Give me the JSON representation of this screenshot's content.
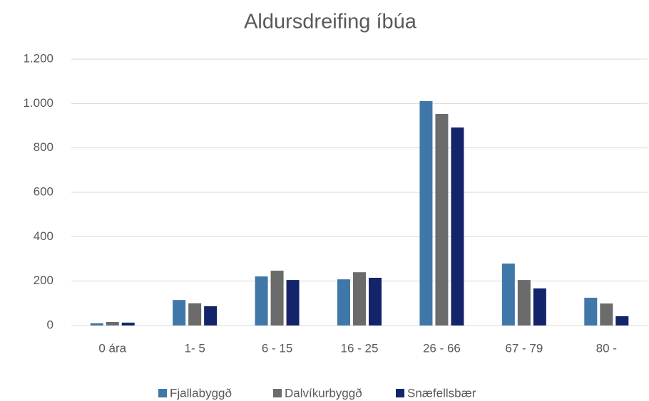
{
  "chart_data": {
    "type": "bar",
    "title": "Aldursdreifing íbúa",
    "categories": [
      "0 ára",
      "1- 5",
      "6 - 15",
      "16 - 25",
      "26 - 66",
      "67 - 79",
      "80 -"
    ],
    "series": [
      {
        "name": "Fjallabyggð",
        "color": "#3f77a8",
        "values": [
          10,
          115,
          221,
          208,
          1011,
          279,
          125
        ]
      },
      {
        "name": "Dalvíkurbyggð",
        "color": "#6b6b6b",
        "values": [
          16,
          100,
          247,
          240,
          953,
          205,
          99
        ]
      },
      {
        "name": "Snæfellsbær",
        "color": "#14246b",
        "values": [
          13,
          87,
          205,
          215,
          892,
          167,
          42
        ]
      }
    ],
    "ylim": [
      0,
      1200
    ],
    "yticks": [
      0,
      200,
      400,
      600,
      800,
      {
        "value": 1000,
        "label": "1.000"
      },
      {
        "value": 1200,
        "label": "1.200"
      }
    ],
    "grid": true,
    "legend": "bottom"
  }
}
